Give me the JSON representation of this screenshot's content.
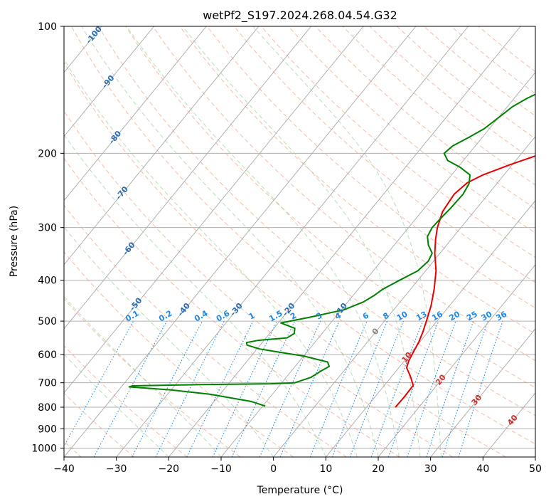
{
  "chart_data": {
    "type": "line",
    "title": "wetPf2_S197.2024.268.04.54.G32",
    "xlabel": "Temperature (°C)",
    "ylabel": "Pressure (hPa)",
    "xlim": [
      -40,
      50
    ],
    "ylim": [
      1050,
      100
    ],
    "y_scale": "log",
    "grid": true,
    "x_ticks": [
      -40,
      -30,
      -20,
      -10,
      0,
      10,
      20,
      30,
      40,
      50
    ],
    "y_ticks": [
      1000,
      900,
      800,
      700,
      600,
      500,
      400,
      300,
      200,
      100
    ],
    "skew_isotherm_labels": [
      -100,
      -90,
      -80,
      -70,
      -60,
      -50,
      -40,
      -30,
      -20,
      -10,
      0,
      10,
      20,
      30,
      40
    ],
    "mixing_ratio_labels": [
      "0.1",
      "0.2",
      "0.4",
      "0.6",
      "1",
      "1.5",
      "2",
      "3",
      "4",
      "6",
      "8",
      "10",
      "13",
      "16",
      "20",
      "25",
      "30",
      "36"
    ],
    "series": [
      {
        "role": "temperature",
        "color": "#e60000",
        "points": [
          [
            15.5,
            800
          ],
          [
            15.6,
            760
          ],
          [
            15.5,
            710
          ],
          [
            13.5,
            675
          ],
          [
            11.5,
            645
          ],
          [
            10.8,
            620
          ],
          [
            10.3,
            590
          ],
          [
            9.8,
            560
          ],
          [
            9.0,
            530
          ],
          [
            8.0,
            500
          ],
          [
            6.5,
            460
          ],
          [
            4.5,
            420
          ],
          [
            2.0,
            380
          ],
          [
            -1.0,
            345
          ],
          [
            -3.0,
            320
          ],
          [
            -4.5,
            300
          ],
          [
            -6.0,
            275
          ],
          [
            -6.5,
            250
          ],
          [
            -5.8,
            235
          ],
          [
            -4.0,
            225
          ],
          [
            -0.5,
            213
          ],
          [
            3.0,
            203
          ],
          [
            4.5,
            195
          ],
          [
            5.5,
            185
          ],
          [
            7.0,
            173
          ],
          [
            9.5,
            160
          ],
          [
            12.5,
            148
          ],
          [
            14.0,
            138
          ],
          [
            16.0,
            130
          ],
          [
            18.5,
            123
          ],
          [
            21.0,
            116
          ],
          [
            22.5,
            110
          ],
          [
            23.0,
            106
          ],
          [
            23.7,
            100
          ]
        ]
      },
      {
        "role": "dewpoint",
        "color": "#008000",
        "points": [
          [
            -9.5,
            795
          ],
          [
            -13.0,
            775
          ],
          [
            -22.0,
            745
          ],
          [
            -30.0,
            728
          ],
          [
            -38.5,
            716
          ],
          [
            -38.0,
            712
          ],
          [
            -25.0,
            707
          ],
          [
            -12.0,
            704
          ],
          [
            -7.5,
            700
          ],
          [
            -5.3,
            680
          ],
          [
            -4.5,
            660
          ],
          [
            -3.5,
            640
          ],
          [
            -4.5,
            625
          ],
          [
            -10.0,
            605
          ],
          [
            -15.0,
            593
          ],
          [
            -19.5,
            582
          ],
          [
            -22.5,
            570
          ],
          [
            -23.0,
            562
          ],
          [
            -21.0,
            555
          ],
          [
            -16.0,
            548
          ],
          [
            -15.3,
            535
          ],
          [
            -16.0,
            520
          ],
          [
            -19.5,
            505
          ],
          [
            -15.0,
            490
          ],
          [
            -9.5,
            470
          ],
          [
            -7.0,
            450
          ],
          [
            -6.0,
            435
          ],
          [
            -5.3,
            420
          ],
          [
            -3.5,
            400
          ],
          [
            -1.5,
            380
          ],
          [
            -1.0,
            360
          ],
          [
            -1.5,
            345
          ],
          [
            -3.5,
            330
          ],
          [
            -5.0,
            315
          ],
          [
            -5.5,
            300
          ],
          [
            -5.3,
            285
          ],
          [
            -5.0,
            270
          ],
          [
            -4.8,
            250
          ],
          [
            -5.3,
            236
          ],
          [
            -6.5,
            225
          ],
          [
            -9.5,
            216
          ],
          [
            -13.0,
            208
          ],
          [
            -14.8,
            200
          ],
          [
            -14.3,
            192
          ],
          [
            -12.5,
            183
          ],
          [
            -11.0,
            175
          ],
          [
            -10.0,
            165
          ],
          [
            -9.0,
            155
          ],
          [
            -7.5,
            148
          ],
          [
            -5.0,
            140
          ],
          [
            -1.5,
            130
          ],
          [
            2.5,
            120
          ],
          [
            5.5,
            113
          ],
          [
            9.0,
            106
          ],
          [
            12.5,
            100
          ]
        ]
      }
    ]
  }
}
